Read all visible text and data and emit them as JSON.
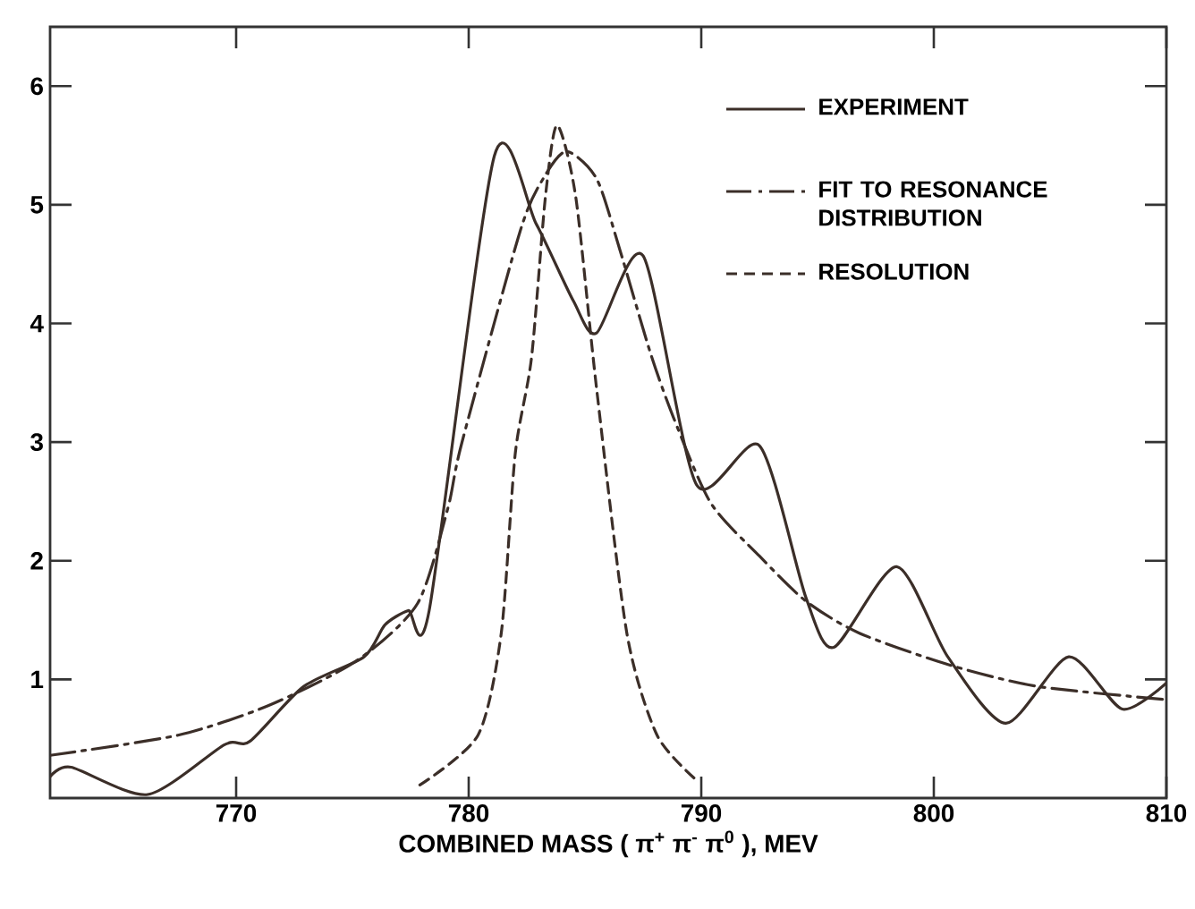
{
  "chart_data": {
    "type": "line",
    "xlabel": "COMBINED MASS ( π$^{+}$ π$^{-}$ π$^{0}$ ), MEV",
    "xlim": [
      762,
      810
    ],
    "xticks": [
      770,
      780,
      790,
      800,
      810
    ],
    "ylim": [
      0,
      6.5
    ],
    "yticks": [
      1,
      2,
      3,
      4,
      5,
      6
    ],
    "grid": false,
    "legend": "top right",
    "marker": "none",
    "series": [
      {
        "name": "EXPERIMENT",
        "color": "#3b2e28",
        "line_style": "solid",
        "x": [
          762,
          762.9,
          766.2,
          769.5,
          770.6,
          772.9,
          775.5,
          776.4,
          777.4,
          778.3,
          781.1,
          782.9,
          784.5,
          785.5,
          787.5,
          789.8,
          792.5,
          794.5,
          795.7,
          798.4,
          800.6,
          803.1,
          805.8,
          808.1,
          810
        ],
        "values": [
          0.18,
          0.26,
          0.03,
          0.45,
          0.48,
          0.94,
          1.19,
          1.46,
          1.58,
          1.58,
          5.41,
          4.84,
          4.19,
          3.92,
          4.57,
          2.64,
          2.97,
          1.69,
          1.27,
          1.95,
          1.19,
          0.63,
          1.19,
          0.75,
          0.97
        ]
      },
      {
        "name": "FIT TO RESONANCE DISTRIBUTION",
        "color": "#3b2e28",
        "line_style": "dashdot",
        "x": [
          762,
          767.5,
          771.4,
          775.2,
          777.8,
          779.1,
          779.7,
          782.2,
          783.2,
          784.2,
          785.5,
          786.5,
          787.8,
          788.8,
          790.4,
          792.5,
          794.5,
          796.8,
          800.7,
          804.5,
          810
        ],
        "values": [
          0.36,
          0.53,
          0.78,
          1.16,
          1.64,
          2.44,
          2.99,
          4.77,
          5.22,
          5.45,
          5.22,
          4.62,
          3.76,
          3.21,
          2.49,
          2.04,
          1.66,
          1.39,
          1.12,
          0.94,
          0.83
        ]
      },
      {
        "name": "RESOLUTION",
        "color": "#3b2e28",
        "line_style": "dashed",
        "x": [
          777.9,
          780.4,
          781.4,
          782,
          782.7,
          783.3,
          783.8,
          784.6,
          785.5,
          786.8,
          788.1,
          789.8
        ],
        "values": [
          0.11,
          0.53,
          1.39,
          2.9,
          3.71,
          5.07,
          5.67,
          5.07,
          3.45,
          1.39,
          0.53,
          0.15
        ]
      }
    ]
  }
}
